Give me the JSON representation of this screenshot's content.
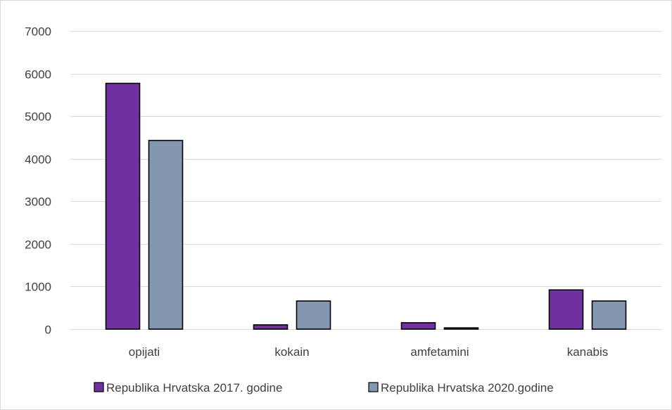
{
  "chart_data": {
    "type": "bar",
    "categories": [
      "opijati",
      "kokain",
      "amfetamini",
      "kanabis"
    ],
    "series": [
      {
        "name": "Republika Hrvatska 2017. godine",
        "values": [
          5770,
          100,
          150,
          920
        ],
        "color": "#7030a0"
      },
      {
        "name": "Republika Hrvatska 2020.godine",
        "values": [
          4430,
          660,
          30,
          660
        ],
        "color": "#8497b0"
      }
    ],
    "ylim": [
      0,
      7000
    ],
    "yticks": [
      0,
      1000,
      2000,
      3000,
      4000,
      5000,
      6000,
      7000
    ],
    "grid": true,
    "legend_position": "bottom",
    "title": "",
    "xlabel": "",
    "ylabel": ""
  }
}
